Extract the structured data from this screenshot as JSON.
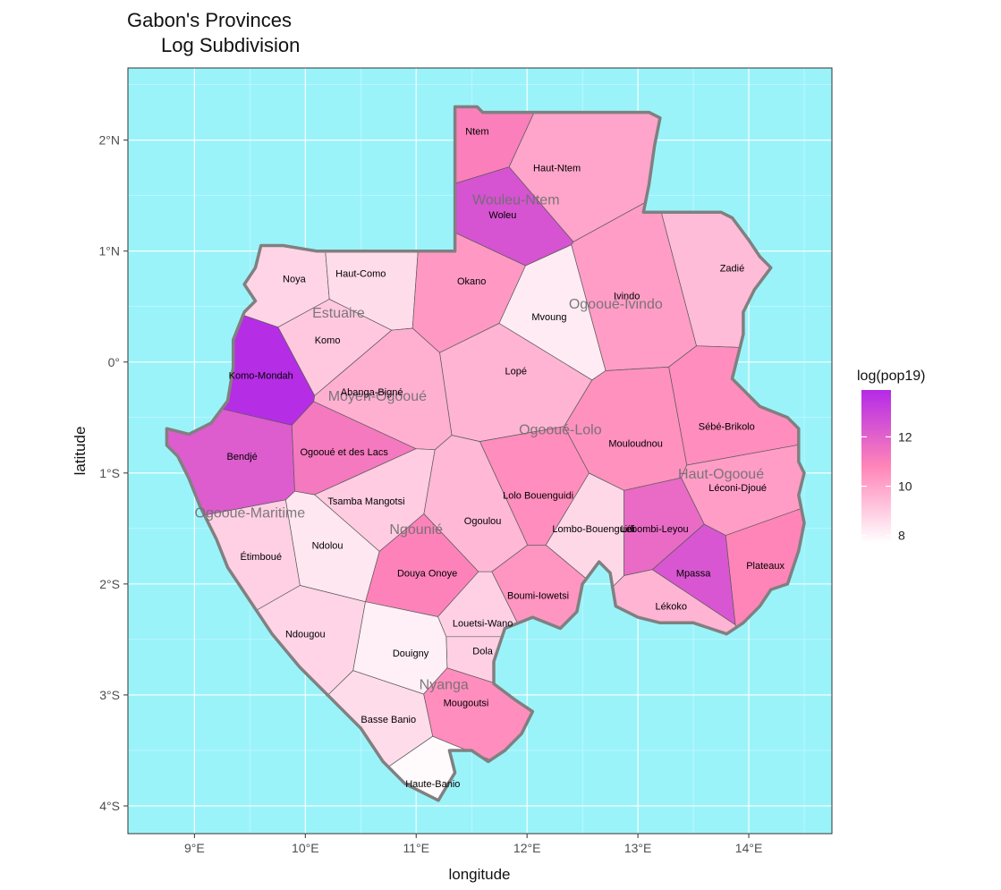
{
  "title": "Gabon's Provinces",
  "subtitle": "Log Subdivision",
  "colors": {
    "sea": "#9bf3fa",
    "border": "#808080",
    "low": "#ffffff",
    "high": "#b42ae8"
  },
  "axes": {
    "xlabel": "longitude",
    "ylabel": "latitude",
    "xticks": [
      {
        "v": 9,
        "label": "9°E"
      },
      {
        "v": 10,
        "label": "10°E"
      },
      {
        "v": 11,
        "label": "11°E"
      },
      {
        "v": 12,
        "label": "12°E"
      },
      {
        "v": 13,
        "label": "13°E"
      },
      {
        "v": 14,
        "label": "14°E"
      }
    ],
    "yticks": [
      {
        "v": 2,
        "label": "2°N"
      },
      {
        "v": 1,
        "label": "1°N"
      },
      {
        "v": 0,
        "label": "0°"
      },
      {
        "v": -1,
        "label": "1°S"
      },
      {
        "v": -2,
        "label": "2°S"
      },
      {
        "v": -3,
        "label": "3°S"
      },
      {
        "v": -4,
        "label": "4°S"
      }
    ],
    "xlim": [
      8.4,
      14.75
    ],
    "ylim": [
      -4.25,
      2.65
    ]
  },
  "legend": {
    "title": "log(pop19)",
    "ticks": [
      8,
      10,
      12
    ],
    "range": [
      7.7,
      13.9
    ]
  },
  "provinces": [
    {
      "name": "Wouleu-Ntem",
      "lon": 11.9,
      "lat": 1.42
    },
    {
      "name": "Estuaire",
      "lon": 10.3,
      "lat": 0.4
    },
    {
      "name": "Ogooué-Ivindo",
      "lon": 12.8,
      "lat": 0.48
    },
    {
      "name": "Moyen-Ogooué",
      "lon": 10.65,
      "lat": -0.35
    },
    {
      "name": "Ogooué-Lolo",
      "lon": 12.3,
      "lat": -0.65
    },
    {
      "name": "Haut-Ogooué",
      "lon": 13.75,
      "lat": -1.05
    },
    {
      "name": "Ogooué-Maritime",
      "lon": 9.5,
      "lat": -1.4
    },
    {
      "name": "Ngounié",
      "lon": 11.0,
      "lat": -1.55
    },
    {
      "name": "Nyanga",
      "lon": 11.25,
      "lat": -2.95
    }
  ],
  "departments": [
    {
      "name": "Ntem",
      "lon": 11.55,
      "lat": 2.08,
      "log_pop": 11.0
    },
    {
      "name": "Haut-Ntem",
      "lon": 12.27,
      "lat": 1.75,
      "log_pop": 10.0
    },
    {
      "name": "Woleu",
      "lon": 11.78,
      "lat": 1.33,
      "log_pop": 12.5
    },
    {
      "name": "Noya",
      "lon": 9.9,
      "lat": 0.75,
      "log_pop": 8.8
    },
    {
      "name": "Haut-Como",
      "lon": 10.5,
      "lat": 0.8,
      "log_pop": 8.6
    },
    {
      "name": "Okano",
      "lon": 11.5,
      "lat": 0.73,
      "log_pop": 10.3
    },
    {
      "name": "Zadié",
      "lon": 13.85,
      "lat": 0.85,
      "log_pop": 9.4
    },
    {
      "name": "Ivindo",
      "lon": 12.9,
      "lat": 0.6,
      "log_pop": 10.2
    },
    {
      "name": "Mvoung",
      "lon": 12.2,
      "lat": 0.41,
      "log_pop": 8.2
    },
    {
      "name": "Komo",
      "lon": 10.2,
      "lat": 0.2,
      "log_pop": 9.1
    },
    {
      "name": "Komo-Mondah",
      "lon": 9.6,
      "lat": -0.12,
      "log_pop": 13.8
    },
    {
      "name": "Lopé",
      "lon": 11.9,
      "lat": -0.08,
      "log_pop": 9.6
    },
    {
      "name": "Abanga-Bigné",
      "lon": 10.6,
      "lat": -0.27,
      "log_pop": 9.7
    },
    {
      "name": "Sébé-Brikolo",
      "lon": 13.8,
      "lat": -0.58,
      "log_pop": 10.6
    },
    {
      "name": "Mouloudnou",
      "lon": 12.98,
      "lat": -0.73,
      "log_pop": 10.5
    },
    {
      "name": "Bendjé",
      "lon": 9.43,
      "lat": -0.85,
      "log_pop": 12.2
    },
    {
      "name": "Ogooué et des Lacs",
      "lon": 10.35,
      "lat": -0.81,
      "log_pop": 11.2
    },
    {
      "name": "Lolo Bouenguidi",
      "lon": 12.1,
      "lat": -1.2,
      "log_pop": 10.6
    },
    {
      "name": "Léconi-Djoué",
      "lon": 13.9,
      "lat": -1.13,
      "log_pop": 10.2
    },
    {
      "name": "Tsamba Mangotsi",
      "lon": 10.55,
      "lat": -1.25,
      "log_pop": 9.0
    },
    {
      "name": "Ogoulou",
      "lon": 11.6,
      "lat": -1.43,
      "log_pop": 9.5
    },
    {
      "name": "Lombo-Bouenguidi",
      "lon": 12.6,
      "lat": -1.5,
      "log_pop": 8.7
    },
    {
      "name": "Lébombi-Leyou",
      "lon": 13.15,
      "lat": -1.5,
      "log_pop": 11.7
    },
    {
      "name": "Étimboué",
      "lon": 9.6,
      "lat": -1.75,
      "log_pop": 8.9
    },
    {
      "name": "Ndolou",
      "lon": 10.2,
      "lat": -1.65,
      "log_pop": 8.3
    },
    {
      "name": "Douya Onoye",
      "lon": 11.1,
      "lat": -1.9,
      "log_pop": 10.9
    },
    {
      "name": "Mpassa",
      "lon": 13.5,
      "lat": -1.9,
      "log_pop": 12.4
    },
    {
      "name": "Plateaux",
      "lon": 14.15,
      "lat": -1.83,
      "log_pop": 10.8
    },
    {
      "name": "Boumi-Iowetsi",
      "lon": 12.1,
      "lat": -2.1,
      "log_pop": 10.4
    },
    {
      "name": "Lékoko",
      "lon": 13.3,
      "lat": -2.2,
      "log_pop": 9.6
    },
    {
      "name": "Louetsi-Wano",
      "lon": 11.6,
      "lat": -2.35,
      "log_pop": 8.9
    },
    {
      "name": "Ndougou",
      "lon": 10.0,
      "lat": -2.45,
      "log_pop": 8.8
    },
    {
      "name": "Dola",
      "lon": 11.6,
      "lat": -2.6,
      "log_pop": 8.9
    },
    {
      "name": "Douigny",
      "lon": 10.95,
      "lat": -2.62,
      "log_pop": 8.1
    },
    {
      "name": "Mougoutsi",
      "lon": 11.45,
      "lat": -3.07,
      "log_pop": 10.6
    },
    {
      "name": "Basse Banio",
      "lon": 10.75,
      "lat": -3.22,
      "log_pop": 8.6
    },
    {
      "name": "Haute-Banio",
      "lon": 11.15,
      "lat": -3.8,
      "log_pop": 7.8
    }
  ]
}
